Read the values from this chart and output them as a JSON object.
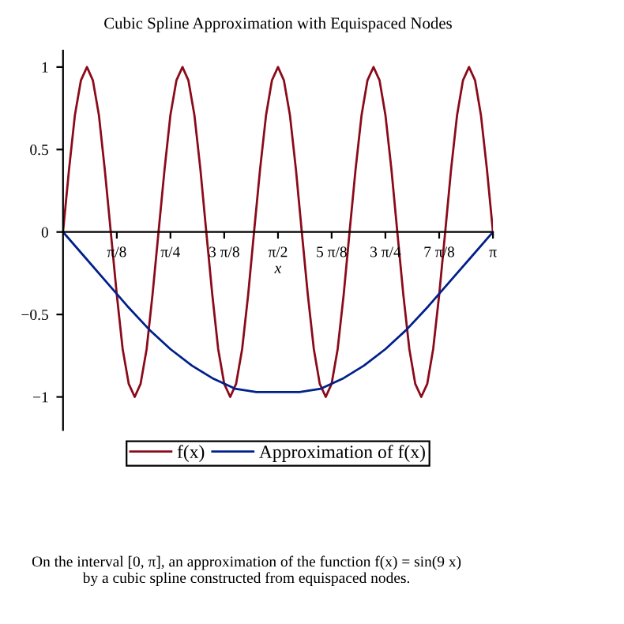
{
  "chart_data": {
    "type": "line",
    "title": "Cubic Spline Approximation with Equispaced Nodes",
    "xlabel": "x",
    "series": [
      {
        "name": "f(x)",
        "color": "#8b0a1a",
        "x": [
          0,
          0.044,
          0.087,
          0.131,
          0.175,
          0.218,
          0.262,
          0.305,
          0.349,
          0.393,
          0.436,
          0.48,
          0.524,
          0.567,
          0.611,
          0.654,
          0.698,
          0.742,
          0.785,
          0.829,
          0.873,
          0.916,
          0.96,
          1.004,
          1.047,
          1.091,
          1.134,
          1.178,
          1.222,
          1.265,
          1.309,
          1.353,
          1.396,
          1.44,
          1.484,
          1.527,
          1.571,
          1.614,
          1.658,
          1.702,
          1.745,
          1.789,
          1.833,
          1.876,
          1.92,
          1.963,
          2.007,
          2.051,
          2.094,
          2.138,
          2.182,
          2.225,
          2.269,
          2.313,
          2.356,
          2.4,
          2.443,
          2.487,
          2.531,
          2.574,
          2.618,
          2.662,
          2.705,
          2.749,
          2.793,
          2.836,
          2.88,
          2.923,
          2.967,
          3.011,
          3.054,
          3.098,
          3.142
        ],
        "values": [
          0,
          0.38,
          0.71,
          0.92,
          1,
          0.92,
          0.71,
          0.38,
          0,
          -0.38,
          -0.71,
          -0.92,
          -1,
          -0.92,
          -0.71,
          -0.38,
          0,
          0.38,
          0.71,
          0.92,
          1,
          0.92,
          0.71,
          0.38,
          0,
          -0.38,
          -0.71,
          -0.92,
          -1,
          -0.92,
          -0.71,
          -0.38,
          0,
          0.38,
          0.71,
          0.92,
          1,
          0.92,
          0.71,
          0.38,
          0,
          -0.38,
          -0.71,
          -0.92,
          -1,
          -0.92,
          -0.71,
          -0.38,
          0,
          0.38,
          0.71,
          0.92,
          1,
          0.92,
          0.71,
          0.38,
          0,
          -0.38,
          -0.71,
          -0.92,
          -1,
          -0.92,
          -0.71,
          -0.38,
          0,
          0.38,
          0.71,
          0.92,
          1,
          0.92,
          0.71,
          0.38,
          0
        ]
      },
      {
        "name": "Approximation of f(x)",
        "color": "#00208b",
        "x": [
          0,
          0.157,
          0.314,
          0.471,
          0.628,
          0.785,
          0.942,
          1.1,
          1.257,
          1.414,
          1.571,
          1.728,
          1.885,
          2.042,
          2.199,
          2.356,
          2.513,
          2.67,
          2.827,
          2.985,
          3.142
        ],
        "values": [
          0,
          -0.15,
          -0.3,
          -0.45,
          -0.59,
          -0.71,
          -0.81,
          -0.89,
          -0.95,
          -0.97,
          -0.97,
          -0.97,
          -0.95,
          -0.89,
          -0.81,
          -0.71,
          -0.59,
          -0.45,
          -0.3,
          -0.15,
          0
        ]
      }
    ],
    "xlim": [
      0,
      3.142
    ],
    "ylim": [
      -1.2,
      1.1
    ],
    "xticks": [
      {
        "value": 0.393,
        "label": "π/8"
      },
      {
        "value": 0.785,
        "label": "π/4"
      },
      {
        "value": 1.178,
        "label": "3 π/8"
      },
      {
        "value": 1.571,
        "label": "π/2"
      },
      {
        "value": 1.963,
        "label": "5 π/8"
      },
      {
        "value": 2.356,
        "label": "3 π/4"
      },
      {
        "value": 2.749,
        "label": "7 π/8"
      },
      {
        "value": 3.142,
        "label": "π"
      }
    ],
    "yticks": [
      {
        "value": -1,
        "label": "−1"
      },
      {
        "value": -0.5,
        "label": "−0.5"
      },
      0,
      0.5,
      1
    ],
    "grid": false,
    "legend": "bottom",
    "marker": "none",
    "line_style": "solid",
    "annotations": [
      "On the interval [0, π], an approximation of the function f(x) = sin(9 x)\nby a cubic spline constructed from equispaced nodes."
    ]
  }
}
